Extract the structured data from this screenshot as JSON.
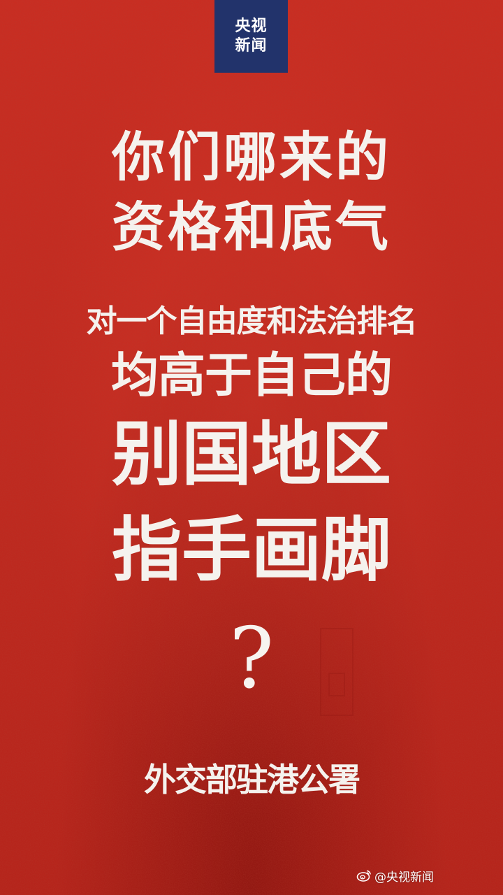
{
  "logo": {
    "line1": "央视",
    "line2": "新闻"
  },
  "headline": {
    "line1": "你们哪来的",
    "line2": "资格和底气",
    "line3": "对一个自由度和法治排名",
    "line4": "均高于自己的",
    "line5": "别国地区",
    "line6": "指手画脚",
    "mark": "?"
  },
  "signature": "外交部驻港公署",
  "watermark": {
    "text": "@央视新闻",
    "icon": "weibo-icon"
  },
  "colors": {
    "background": "#c1281f",
    "logo_background": "#22336b",
    "text": "#f5f2ee"
  }
}
